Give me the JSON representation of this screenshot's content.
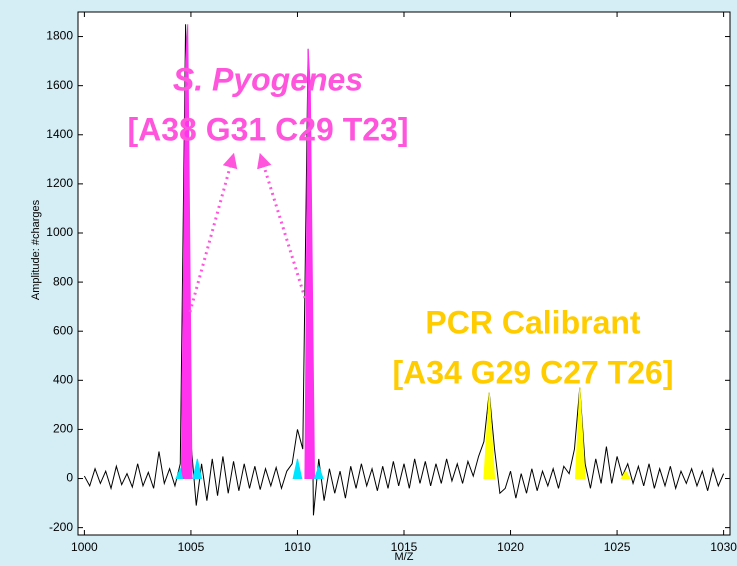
{
  "chart_data": {
    "type": "line",
    "xlabel": "M/Z",
    "ylabel": "Amplitude: #charges",
    "xlim": [
      999.7,
      1030.3
    ],
    "ylim": [
      -230,
      1900
    ],
    "xticks": [
      1000,
      1005,
      1010,
      1015,
      1020,
      1025,
      1030
    ],
    "yticks": [
      -200,
      0,
      200,
      400,
      600,
      800,
      1000,
      1200,
      1400,
      1600,
      1800
    ],
    "grid": false,
    "annotations": [
      {
        "text": "S. Pyogenes",
        "color": "#ff55dd"
      },
      {
        "text": "[A38 G31 C29 T23]",
        "color": "#ff55dd"
      },
      {
        "text": "PCR Calibrant",
        "color": "#ffcc00"
      },
      {
        "text": "[A34 G29 C27 T26]",
        "color": "#ffcc00"
      }
    ],
    "series": [
      {
        "color": "#000000",
        "fill": false,
        "x": [
          1000,
          1000.25,
          1000.5,
          1000.75,
          1001,
          1001.25,
          1001.5,
          1001.75,
          1002,
          1002.25,
          1002.5,
          1002.75,
          1003,
          1003.25,
          1003.5,
          1003.75,
          1004,
          1004.25,
          1004.5,
          1004.75,
          1005,
          1005.25,
          1005.5,
          1005.75,
          1006,
          1006.25,
          1006.5,
          1006.75,
          1007,
          1007.25,
          1007.5,
          1007.75,
          1008,
          1008.25,
          1008.5,
          1008.75,
          1009,
          1009.25,
          1009.5,
          1009.75,
          1010,
          1010.25,
          1010.5,
          1010.75,
          1011,
          1011.25,
          1011.5,
          1011.75,
          1012,
          1012.25,
          1012.5,
          1012.75,
          1013,
          1013.25,
          1013.5,
          1013.75,
          1014,
          1014.25,
          1014.5,
          1014.75,
          1015,
          1015.25,
          1015.5,
          1015.75,
          1016,
          1016.25,
          1016.5,
          1016.75,
          1017,
          1017.25,
          1017.5,
          1017.75,
          1018,
          1018.25,
          1018.5,
          1018.75,
          1019,
          1019.25,
          1019.5,
          1019.75,
          1020,
          1020.25,
          1020.5,
          1020.75,
          1021,
          1021.25,
          1021.5,
          1021.75,
          1022,
          1022.25,
          1022.5,
          1022.75,
          1023,
          1023.25,
          1023.5,
          1023.75,
          1024,
          1024.25,
          1024.5,
          1024.75,
          1025,
          1025.25,
          1025.5,
          1025.75,
          1026,
          1026.25,
          1026.5,
          1026.75,
          1027,
          1027.25,
          1027.5,
          1027.75,
          1028,
          1028.25,
          1028.5,
          1028.75,
          1029,
          1029.25,
          1029.5,
          1029.75,
          1030
        ],
        "values": [
          10,
          -30,
          40,
          -20,
          30,
          -40,
          50,
          -25,
          20,
          -35,
          60,
          -30,
          25,
          -40,
          110,
          -20,
          40,
          -30,
          60,
          1850,
          150,
          -110,
          60,
          -90,
          80,
          -70,
          90,
          -60,
          70,
          -50,
          60,
          -40,
          50,
          -45,
          40,
          -30,
          45,
          -40,
          30,
          60,
          200,
          120,
          1750,
          -150,
          80,
          -90,
          40,
          -60,
          30,
          -80,
          50,
          -40,
          60,
          -30,
          40,
          -50,
          50,
          -40,
          70,
          -30,
          60,
          -40,
          80,
          -20,
          70,
          -30,
          60,
          -20,
          80,
          -10,
          60,
          -20,
          70,
          10,
          90,
          150,
          350,
          120,
          -60,
          -40,
          30,
          -80,
          20,
          -60,
          40,
          -50,
          30,
          -30,
          40,
          -40,
          50,
          20,
          120,
          370,
          60,
          -40,
          80,
          -20,
          130,
          -20,
          90,
          10,
          60,
          -20,
          50,
          -30,
          60,
          -40,
          40,
          -30,
          50,
          -40,
          30,
          -20,
          40,
          -30,
          30,
          -50,
          40,
          -30,
          20
        ]
      },
      {
        "color": "#ff33ee",
        "fill": true,
        "x": [
          1004.55,
          1004.75,
          1004.85,
          1005.05
        ],
        "values": [
          0,
          1700,
          1850,
          0
        ]
      },
      {
        "color": "#ff33ee",
        "fill": true,
        "x": [
          1010.35,
          1010.5,
          1010.6,
          1010.8
        ],
        "values": [
          0,
          1750,
          1600,
          0
        ]
      },
      {
        "color": "#ffff00",
        "fill": true,
        "x": [
          1018.75,
          1019,
          1019.25
        ],
        "values": [
          0,
          350,
          0
        ]
      },
      {
        "color": "#ffff00",
        "fill": true,
        "x": [
          1023.05,
          1023.25,
          1023.5
        ],
        "values": [
          0,
          370,
          0
        ]
      },
      {
        "color": "#ffff00",
        "fill": true,
        "x": [
          1025.2,
          1025.4,
          1025.6
        ],
        "values": [
          0,
          30,
          0
        ]
      },
      {
        "color": "#00e5ff",
        "fill": true,
        "x": [
          1004.3,
          1004.5,
          1004.6
        ],
        "values": [
          0,
          40,
          0
        ]
      },
      {
        "color": "#00e5ff",
        "fill": true,
        "x": [
          1005.1,
          1005.3,
          1005.5
        ],
        "values": [
          0,
          80,
          0
        ]
      },
      {
        "color": "#00e5ff",
        "fill": true,
        "x": [
          1009.8,
          1010,
          1010.2
        ],
        "values": [
          0,
          80,
          0
        ]
      },
      {
        "color": "#00e5ff",
        "fill": true,
        "x": [
          1010.8,
          1011,
          1011.2
        ],
        "values": [
          0,
          50,
          0
        ]
      }
    ]
  }
}
